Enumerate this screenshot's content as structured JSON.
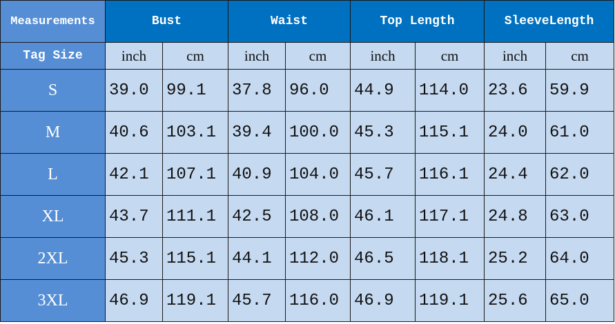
{
  "header": {
    "first": "Measurements",
    "groups": [
      "Bust",
      "Waist",
      "Top Length",
      "SleeveLength"
    ]
  },
  "units": {
    "label": "Tag Size",
    "items": [
      "inch",
      "cm",
      "inch",
      "cm",
      "inch",
      "cm",
      "inch",
      "cm"
    ]
  },
  "rows": [
    {
      "size": "S",
      "values": [
        "39.0",
        "99.1",
        "37.8",
        "96.0",
        "44.9",
        "114.0",
        "23.6",
        "59.9"
      ]
    },
    {
      "size": "M",
      "values": [
        "40.6",
        "103.1",
        "39.4",
        "100.0",
        "45.3",
        "115.1",
        "24.0",
        "61.0"
      ]
    },
    {
      "size": "L",
      "values": [
        "42.1",
        "107.1",
        "40.9",
        "104.0",
        "45.7",
        "116.1",
        "24.4",
        "62.0"
      ]
    },
    {
      "size": "XL",
      "values": [
        "43.7",
        "111.1",
        "42.5",
        "108.0",
        "46.1",
        "117.1",
        "24.8",
        "63.0"
      ]
    },
    {
      "size": "2XL",
      "values": [
        "45.3",
        "115.1",
        "44.1",
        "112.0",
        "46.5",
        "118.1",
        "25.2",
        "64.0"
      ]
    },
    {
      "size": "3XL",
      "values": [
        "46.9",
        "119.1",
        "45.7",
        "116.0",
        "46.9",
        "119.1",
        "25.6",
        "65.0"
      ]
    }
  ],
  "colors": {
    "header": "#0070C0",
    "size_column": "#558ED5",
    "cells": "#C5D9F1"
  }
}
